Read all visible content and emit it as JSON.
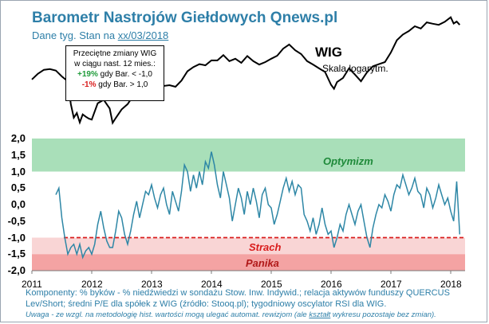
{
  "header": {
    "title": "Barometr Nastrojów Giełdowych Qnews.pl",
    "subtitle_prefix": "Dane tyg. Stan na ",
    "subtitle_date": "xx/03/2018"
  },
  "legend": {
    "line1": "Przeciętne zmiany WIG",
    "line2": "w ciągu nast. 12 mies.:",
    "pos_value": "+19%",
    "pos_text": " gdy Bar. < -1,0",
    "neg_value": "-1%",
    "neg_text": " gdy Bar. > 1,0"
  },
  "wig": {
    "label": "WIG",
    "scale": "Skala logarytm."
  },
  "zones": {
    "optimism": "Optymizm",
    "fear": "Strach",
    "panic": "Panika"
  },
  "footer": {
    "line1": "Komponenty: % byków - % niedźwiedzi w sondażu Stow. Inw. Indywid.; relacja aktywów funduszy QUERCUS Lev/Short; średni P/E dla spółek z WIG (źródło: Stooq.pl); tygodniowy oscylator RSI dla WIG.",
    "line2_prefix": "Uwaga - ze wzgl. na metodologię hist. wartości mogą ulegać automat. rewizjom (ale ",
    "line2_underlined": "kształt",
    "line2_suffix": " wykresu pozostaje bez zmian)."
  },
  "colors": {
    "title": "#2e7fa8",
    "optimism_band": "#a9dfb9",
    "optimism_text": "#1f8a3a",
    "fear_band": "#f9d5d5",
    "panic_band": "#f4a3a3",
    "fear_text": "#d91c1c",
    "panic_text": "#b01818",
    "barometer_line": "#2e87a6",
    "wig_line": "#000000",
    "threshold_line": "#d91c1c"
  },
  "chart_data": {
    "type": "line",
    "title": "Barometr Nastrojów Giełdowych Qnews.pl",
    "xlabel": "",
    "ylabel": "",
    "xlim": [
      2011,
      2018.3
    ],
    "ylim": [
      -2.0,
      2.0
    ],
    "x_ticks": [
      "2011",
      "2012",
      "2013",
      "2014",
      "2015",
      "2016",
      "2017",
      "2018"
    ],
    "y_ticks": [
      "2,0",
      "1,5",
      "1,0",
      "0,5",
      "0,0",
      "-0,5",
      "-1,0",
      "-1,5",
      "-2,0"
    ],
    "bands": [
      {
        "name": "Optymizm",
        "from": 1.0,
        "to": 2.0
      },
      {
        "name": "Strach",
        "from": -1.5,
        "to": -1.0
      },
      {
        "name": "Panika",
        "from": -2.0,
        "to": -1.5
      }
    ],
    "threshold": -1.0,
    "series": [
      {
        "name": "Barometr",
        "axis": "left",
        "x": [
          2011.4,
          2011.45,
          2011.5,
          2011.55,
          2011.6,
          2011.65,
          2011.7,
          2011.75,
          2011.8,
          2011.85,
          2011.9,
          2011.95,
          2012.0,
          2012.05,
          2012.1,
          2012.15,
          2012.2,
          2012.25,
          2012.3,
          2012.35,
          2012.4,
          2012.45,
          2012.5,
          2012.55,
          2012.6,
          2012.65,
          2012.7,
          2012.75,
          2012.8,
          2012.85,
          2012.9,
          2012.95,
          2013.0,
          2013.05,
          2013.1,
          2013.15,
          2013.2,
          2013.25,
          2013.3,
          2013.35,
          2013.4,
          2013.45,
          2013.5,
          2013.55,
          2013.6,
          2013.65,
          2013.7,
          2013.75,
          2013.8,
          2013.85,
          2013.9,
          2013.95,
          2014.0,
          2014.05,
          2014.1,
          2014.15,
          2014.2,
          2014.25,
          2014.3,
          2014.35,
          2014.4,
          2014.45,
          2014.5,
          2014.55,
          2014.6,
          2014.65,
          2014.7,
          2014.75,
          2014.8,
          2014.85,
          2014.9,
          2014.95,
          2015.0,
          2015.05,
          2015.1,
          2015.15,
          2015.2,
          2015.25,
          2015.3,
          2015.35,
          2015.4,
          2015.45,
          2015.5,
          2015.55,
          2015.6,
          2015.65,
          2015.7,
          2015.75,
          2015.8,
          2015.85,
          2015.9,
          2015.95,
          2016.0,
          2016.05,
          2016.1,
          2016.15,
          2016.2,
          2016.25,
          2016.3,
          2016.35,
          2016.4,
          2016.45,
          2016.5,
          2016.55,
          2016.6,
          2016.65,
          2016.7,
          2016.75,
          2016.8,
          2016.85,
          2016.9,
          2016.95,
          2017.0,
          2017.05,
          2017.1,
          2017.15,
          2017.2,
          2017.25,
          2017.3,
          2017.35,
          2017.4,
          2017.45,
          2017.5,
          2017.55,
          2017.6,
          2017.65,
          2017.7,
          2017.75,
          2017.8,
          2017.85,
          2017.9,
          2017.95,
          2018.0,
          2018.05,
          2018.1,
          2018.15
        ],
        "values": [
          0.3,
          0.5,
          -0.4,
          -1.0,
          -1.5,
          -1.3,
          -1.2,
          -1.5,
          -1.2,
          -1.6,
          -1.4,
          -1.3,
          -1.5,
          -1.2,
          -0.6,
          -0.2,
          -0.7,
          -1.1,
          -1.3,
          -1.3,
          -0.8,
          -0.2,
          -0.4,
          -0.9,
          -1.2,
          -0.8,
          -0.3,
          0.1,
          -0.4,
          0.0,
          0.4,
          0.3,
          0.6,
          0.2,
          -0.1,
          0.3,
          0.5,
          0.0,
          -0.3,
          0.4,
          0.1,
          -0.2,
          0.4,
          1.2,
          1.0,
          0.4,
          0.9,
          0.5,
          1.0,
          0.6,
          1.3,
          1.1,
          1.6,
          1.2,
          0.6,
          0.2,
          1.0,
          0.6,
          0.2,
          -0.5,
          0.0,
          0.5,
          0.2,
          -0.3,
          0.4,
          0.0,
          0.5,
          0.1,
          -0.4,
          0.3,
          0.5,
          0.0,
          -0.1,
          -0.6,
          -0.3,
          0.1,
          0.5,
          0.8,
          0.4,
          0.7,
          0.3,
          0.6,
          0.5,
          -0.3,
          -0.5,
          -0.8,
          -0.4,
          -0.9,
          -0.6,
          -0.1,
          -0.6,
          -0.9,
          -0.8,
          -1.3,
          -1.0,
          -0.6,
          -0.8,
          -0.3,
          0.0,
          -0.3,
          -0.6,
          -0.2,
          0.0,
          -0.5,
          -1.0,
          -1.3,
          -0.7,
          -0.3,
          0.0,
          -0.1,
          0.3,
          0.1,
          -0.2,
          0.3,
          0.6,
          0.5,
          0.9,
          0.6,
          0.3,
          0.5,
          0.8,
          0.4,
          0.3,
          -0.1,
          0.5,
          0.3,
          -0.1,
          0.2,
          0.6,
          0.3,
          0.0,
          0.2,
          -0.2,
          -0.5,
          0.7,
          -0.9
        ]
      },
      {
        "name": "WIG",
        "axis": "right-log",
        "x": [
          2011.0,
          2011.1,
          2011.2,
          2011.3,
          2011.4,
          2011.5,
          2011.6,
          2011.65,
          2011.7,
          2011.75,
          2011.8,
          2011.85,
          2011.9,
          2011.95,
          2012.0,
          2012.1,
          2012.2,
          2012.3,
          2012.35,
          2012.4,
          2012.5,
          2012.6,
          2012.7,
          2012.8,
          2012.9,
          2013.0,
          2013.1,
          2013.2,
          2013.3,
          2013.4,
          2013.5,
          2013.6,
          2013.7,
          2013.8,
          2013.9,
          2014.0,
          2014.1,
          2014.2,
          2014.3,
          2014.4,
          2014.5,
          2014.6,
          2014.7,
          2014.8,
          2014.9,
          2015.0,
          2015.1,
          2015.2,
          2015.3,
          2015.4,
          2015.5,
          2015.6,
          2015.7,
          2015.8,
          2015.9,
          2016.0,
          2016.05,
          2016.1,
          2016.2,
          2016.3,
          2016.4,
          2016.5,
          2016.6,
          2016.7,
          2016.8,
          2016.9,
          2017.0,
          2017.1,
          2017.2,
          2017.3,
          2017.4,
          2017.5,
          2017.6,
          2017.7,
          2017.8,
          2017.9,
          2018.0,
          2018.05,
          2018.1,
          2018.15
        ],
        "values": [
          46800,
          48300,
          49400,
          49600,
          49200,
          47600,
          46300,
          40700,
          37700,
          38700,
          36700,
          38400,
          37900,
          37500,
          37300,
          40900,
          41700,
          39700,
          36600,
          37600,
          39500,
          40700,
          42800,
          43500,
          45700,
          47200,
          46600,
          45100,
          45300,
          44900,
          46500,
          49000,
          50200,
          51000,
          50700,
          52100,
          52100,
          53700,
          51900,
          52600,
          51400,
          53400,
          51900,
          50900,
          51600,
          52600,
          53500,
          55700,
          57000,
          55200,
          54000,
          51900,
          50900,
          49800,
          48800,
          45400,
          44400,
          46100,
          47200,
          49800,
          48100,
          46300,
          48700,
          50400,
          51000,
          51600,
          54500,
          58400,
          60300,
          61500,
          63200,
          62400,
          64600,
          64100,
          63700,
          64800,
          66500,
          64200,
          64900,
          63700
        ]
      }
    ]
  }
}
